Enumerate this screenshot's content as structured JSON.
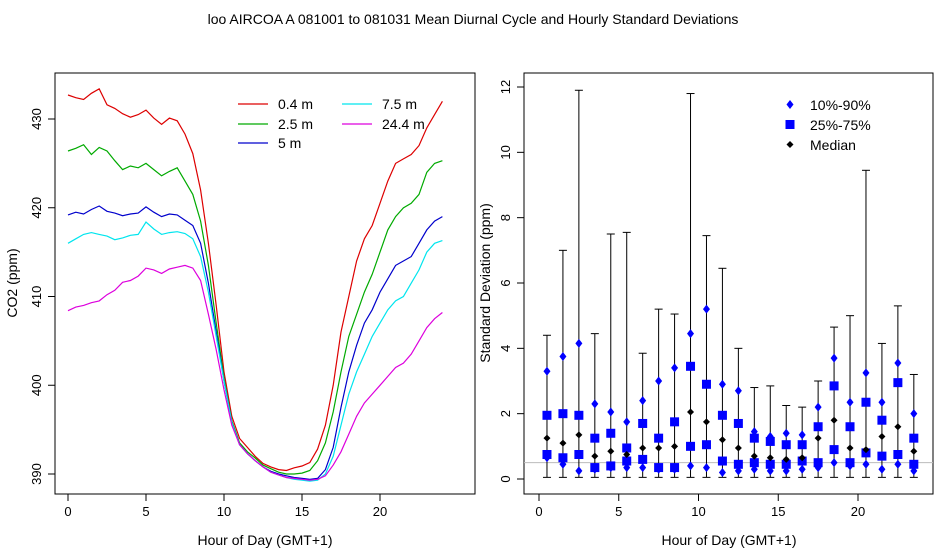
{
  "title": "loo   AIRCOA A   081001 to 081031   Mean Diurnal Cycle and Hourly Standard Deviations",
  "colors": {
    "s0_4": "#dd0000",
    "s2_5": "#00aa00",
    "s5": "#0000cc",
    "s7_5": "#00e5ee",
    "s24_4": "#dd00dd",
    "blue_marks": "#0000ff",
    "median": "#000000",
    "ref_line": "#bbbbbb"
  },
  "chart_data": [
    {
      "type": "line",
      "title": "",
      "xlabel": "Hour of Day (GMT+1)",
      "ylabel": "CO2 (ppm)",
      "xlim": [
        0,
        24
      ],
      "ylim": [
        390,
        433
      ],
      "xticks": [
        "0",
        "5",
        "10",
        "15",
        "20"
      ],
      "yticks": [
        "390",
        "400",
        "410",
        "420",
        "430"
      ],
      "legend_position": "top-right",
      "x": [
        0,
        0.5,
        1,
        1.5,
        2,
        2.5,
        3,
        3.5,
        4,
        4.5,
        5,
        5.5,
        6,
        6.5,
        7,
        7.5,
        8,
        8.5,
        9,
        9.5,
        10,
        10.5,
        11,
        11.5,
        12,
        12.5,
        13,
        13.5,
        14,
        14.5,
        15,
        15.5,
        16,
        16.5,
        17,
        17.5,
        18,
        18.5,
        19,
        19.5,
        20,
        20.5,
        21,
        21.5,
        22,
        22.5,
        23,
        23.5,
        24
      ],
      "series": [
        {
          "name": "0.4 m",
          "color_key": "s0_4",
          "values": [
            432.7,
            432.4,
            432.2,
            432.9,
            433.4,
            431.6,
            431.2,
            430.6,
            430.2,
            430.5,
            431.0,
            430.1,
            429.4,
            430.1,
            429.8,
            428.3,
            426.1,
            422.0,
            416.0,
            409.0,
            401.5,
            396.5,
            394.0,
            393.0,
            392.0,
            391.2,
            390.8,
            390.5,
            390.4,
            390.7,
            390.9,
            391.3,
            392.8,
            395.5,
            400.0,
            406.0,
            410.0,
            414.0,
            416.5,
            418.0,
            420.5,
            423.0,
            425.0,
            425.5,
            426.0,
            427.0,
            429.0,
            430.5,
            432.0
          ]
        },
        {
          "name": "2.5 m",
          "color_key": "s2_5",
          "values": [
            426.4,
            426.7,
            427.1,
            426.0,
            426.8,
            426.4,
            425.3,
            424.3,
            424.7,
            424.5,
            425.0,
            424.3,
            423.6,
            424.1,
            424.5,
            423.0,
            421.5,
            418.5,
            413.5,
            407.0,
            400.8,
            396.0,
            393.5,
            392.5,
            391.8,
            391.0,
            390.6,
            390.2,
            390.0,
            390.0,
            390.1,
            390.4,
            391.5,
            393.5,
            397.0,
            401.5,
            405.5,
            408.0,
            410.5,
            412.5,
            415.0,
            417.5,
            419.0,
            420.0,
            420.5,
            421.5,
            424.0,
            425.0,
            425.3
          ]
        },
        {
          "name": "5 m",
          "color_key": "s5",
          "values": [
            419.2,
            419.5,
            419.3,
            419.8,
            420.2,
            419.6,
            419.4,
            419.1,
            419.3,
            419.4,
            420.1,
            419.5,
            419.0,
            419.3,
            419.2,
            418.6,
            418.0,
            416.0,
            411.5,
            406.0,
            400.5,
            395.8,
            393.3,
            392.3,
            391.5,
            390.8,
            390.3,
            390.0,
            389.8,
            389.6,
            389.5,
            389.4,
            389.5,
            390.5,
            393.0,
            397.5,
            401.5,
            404.5,
            407.0,
            408.5,
            410.5,
            412.0,
            413.5,
            414.0,
            414.5,
            416.0,
            417.5,
            418.5,
            419.0
          ]
        },
        {
          "name": "7.5 m",
          "color_key": "s7_5",
          "values": [
            416.0,
            416.5,
            417.0,
            417.2,
            417.0,
            416.8,
            416.4,
            416.6,
            416.9,
            417.0,
            418.4,
            417.6,
            417.0,
            417.2,
            417.3,
            417.1,
            416.5,
            414.5,
            410.5,
            405.5,
            400.5,
            395.8,
            393.3,
            392.3,
            391.5,
            390.8,
            390.2,
            389.9,
            389.6,
            389.4,
            389.3,
            389.2,
            389.3,
            390.0,
            392.0,
            395.5,
            399.0,
            401.5,
            403.5,
            405.5,
            407.0,
            408.5,
            409.5,
            410.0,
            411.5,
            413.0,
            415.0,
            416.0,
            416.3
          ]
        },
        {
          "name": "24.4 m",
          "color_key": "s24_4",
          "values": [
            408.4,
            408.8,
            409.0,
            409.3,
            409.5,
            410.2,
            410.7,
            411.6,
            411.8,
            412.3,
            413.2,
            413.0,
            412.6,
            413.1,
            413.3,
            413.5,
            413.2,
            411.8,
            408.0,
            404.0,
            399.5,
            395.5,
            393.3,
            392.3,
            391.5,
            390.8,
            390.2,
            389.9,
            389.6,
            389.5,
            389.4,
            389.3,
            389.4,
            389.8,
            391.0,
            392.5,
            394.5,
            396.5,
            398.0,
            399.0,
            400.0,
            401.0,
            402.0,
            402.5,
            403.5,
            405.0,
            406.5,
            407.5,
            408.2
          ]
        }
      ]
    },
    {
      "type": "scatter",
      "title": "",
      "xlabel": "Hour of Day (GMT+1)",
      "ylabel": "Standard Deviation (ppm)",
      "xlim": [
        0,
        24
      ],
      "ylim": [
        0,
        12
      ],
      "xticks": [
        "0",
        "5",
        "10",
        "15",
        "20"
      ],
      "yticks": [
        "0",
        "2",
        "4",
        "6",
        "8",
        "10",
        "12"
      ],
      "legend_position": "top-right",
      "legend": [
        "10%-90%",
        "25%-75%",
        "Median"
      ],
      "reference_line": 0.5,
      "hours": [
        0.5,
        1.5,
        2.5,
        3.5,
        4.5,
        5.5,
        6.5,
        7.5,
        8.5,
        9.5,
        10.5,
        11.5,
        12.5,
        13.5,
        14.5,
        15.5,
        16.5,
        17.5,
        18.5,
        19.5,
        20.5,
        21.5,
        22.5,
        23.5
      ],
      "max": [
        4.4,
        7.0,
        11.9,
        4.45,
        7.5,
        7.55,
        3.85,
        5.2,
        5.05,
        11.8,
        7.45,
        6.45,
        4.0,
        2.8,
        2.85,
        2.25,
        2.2,
        3.0,
        4.65,
        5.0,
        9.45,
        4.15,
        5.3,
        3.2
      ],
      "min": [
        0.05,
        0.05,
        0.05,
        0.05,
        0.05,
        0.05,
        0.05,
        0.05,
        0.05,
        0.05,
        0.05,
        0.05,
        0.05,
        0.05,
        0.05,
        0.05,
        0.05,
        0.05,
        0.05,
        0.05,
        0.05,
        0.05,
        0.05,
        0.05
      ],
      "p10": [
        0.65,
        0.45,
        0.25,
        0.3,
        0.35,
        0.35,
        0.35,
        0.3,
        0.3,
        0.4,
        0.35,
        0.2,
        0.25,
        0.3,
        0.25,
        0.25,
        0.3,
        0.35,
        0.5,
        0.4,
        0.45,
        0.3,
        0.45,
        0.25
      ],
      "p90": [
        3.3,
        3.75,
        4.15,
        2.3,
        2.05,
        1.75,
        2.4,
        3.0,
        3.4,
        4.45,
        5.2,
        2.9,
        2.7,
        1.45,
        1.3,
        1.4,
        1.35,
        2.2,
        3.7,
        2.35,
        3.25,
        2.35,
        3.55,
        2.0
      ],
      "p25": [
        0.75,
        0.65,
        0.75,
        0.35,
        0.4,
        0.55,
        0.6,
        0.35,
        0.35,
        1.0,
        1.05,
        0.55,
        0.45,
        0.5,
        0.45,
        0.45,
        0.55,
        0.5,
        0.9,
        0.5,
        0.8,
        0.7,
        0.75,
        0.45
      ],
      "p75": [
        1.95,
        2.0,
        1.95,
        1.25,
        1.4,
        0.95,
        1.7,
        1.25,
        1.75,
        3.45,
        2.9,
        1.95,
        1.7,
        1.25,
        1.15,
        1.05,
        1.05,
        1.6,
        2.85,
        1.6,
        2.35,
        1.8,
        2.95,
        1.25
      ],
      "median": [
        1.25,
        1.1,
        1.35,
        0.7,
        0.85,
        0.75,
        0.95,
        0.95,
        1.0,
        2.05,
        1.75,
        1.2,
        0.95,
        0.7,
        0.65,
        0.6,
        0.65,
        1.25,
        1.8,
        0.95,
        0.9,
        1.3,
        1.6,
        0.85
      ]
    }
  ]
}
